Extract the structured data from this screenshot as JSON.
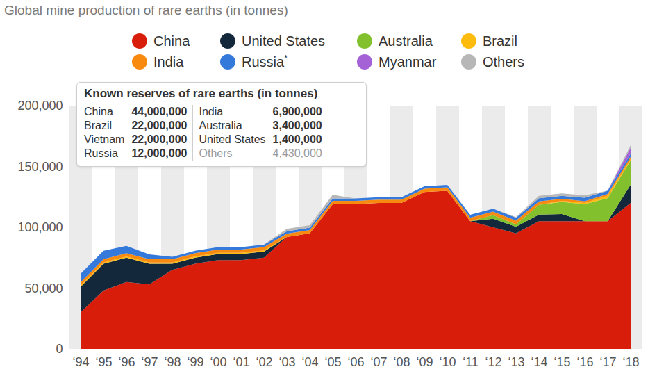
{
  "chart_data": {
    "type": "area",
    "title": "Global mine production of rare earths (in tonnes)",
    "stacked": true,
    "grid": false,
    "legend": "top",
    "categories": [
      "‘94",
      "‘95",
      "‘96",
      "‘97",
      "‘98",
      "‘99",
      "‘00",
      "‘01",
      "‘02",
      "‘03",
      "‘04",
      "‘05",
      "‘06",
      "‘07",
      "‘08",
      "‘09",
      "‘10",
      "‘11",
      "‘12",
      "‘13",
      "‘14",
      "‘15",
      "‘16",
      "‘17",
      "‘18"
    ],
    "series": [
      {
        "name": "China",
        "color": "#d81e0b",
        "values": [
          30000,
          48000,
          55000,
          53000,
          65000,
          70000,
          73000,
          73000,
          75000,
          92000,
          95000,
          119000,
          119000,
          120000,
          120000,
          129000,
          130000,
          105000,
          100000,
          95000,
          105000,
          105000,
          105000,
          105000,
          120000
        ]
      },
      {
        "name": "United States",
        "color": "#13283b",
        "values": [
          21000,
          22000,
          20000,
          17000,
          5000,
          5000,
          5000,
          5000,
          5000,
          0,
          0,
          0,
          0,
          0,
          0,
          0,
          0,
          0,
          7000,
          5500,
          5400,
          5900,
          0,
          0,
          15000
        ]
      },
      {
        "name": "Australia",
        "color": "#82c12d",
        "values": [
          0,
          0,
          0,
          0,
          0,
          0,
          0,
          0,
          0,
          0,
          0,
          0,
          0,
          0,
          0,
          0,
          0,
          0,
          3000,
          2000,
          8000,
          10000,
          14000,
          19000,
          20000
        ]
      },
      {
        "name": "Brazil",
        "color": "#fdbb0d",
        "values": [
          1000,
          1000,
          1000,
          1000,
          1000,
          1000,
          1000,
          1000,
          1000,
          0,
          0,
          0,
          0,
          0,
          0,
          0,
          0,
          0,
          0,
          0,
          0,
          800,
          1000,
          2000,
          1000
        ]
      },
      {
        "name": "India",
        "color": "#f98a10",
        "values": [
          2700,
          2700,
          2700,
          2700,
          2700,
          2700,
          2700,
          2700,
          2700,
          2700,
          2700,
          2700,
          2700,
          2700,
          2700,
          2700,
          2800,
          2800,
          2900,
          2900,
          2900,
          1700,
          1500,
          1500,
          1800
        ]
      },
      {
        "name": "Russia*",
        "color": "#3579db",
        "values": [
          7000,
          7000,
          6000,
          4000,
          2000,
          2000,
          2000,
          2000,
          2000,
          2000,
          2000,
          2000,
          2000,
          2000,
          2000,
          2000,
          2000,
          2500,
          2400,
          2500,
          2500,
          2500,
          2800,
          2600,
          2600
        ]
      },
      {
        "name": "Myanmar",
        "color": "#a562d6",
        "values": [
          0,
          0,
          0,
          0,
          0,
          0,
          0,
          0,
          0,
          0,
          0,
          0,
          0,
          0,
          0,
          0,
          0,
          0,
          0,
          0,
          0,
          0,
          0,
          0,
          5000
        ]
      },
      {
        "name": "Others",
        "color": "#b7b7b7",
        "values": [
          0,
          0,
          0,
          0,
          0,
          0,
          0,
          0,
          0,
          2000,
          2000,
          3000,
          0,
          0,
          0,
          0,
          0,
          0,
          0,
          500,
          2000,
          2000,
          2000,
          0,
          2000
        ]
      }
    ],
    "ylim": [
      0,
      200000
    ],
    "yticks": [
      0,
      {
        "value": 50000,
        "label": "50,000"
      },
      {
        "value": 100000,
        "label": "100,000"
      },
      {
        "value": 150000,
        "label": "150,000"
      },
      {
        "value": 200000,
        "label": "200,000"
      }
    ]
  },
  "inset_table": {
    "title": "Known reserves of rare earths (in tonnes)",
    "rows": [
      [
        "China",
        "44,000,000",
        "India",
        "6,900,000"
      ],
      [
        "Brazil",
        "22,000,000",
        "Australia",
        "3,400,000"
      ],
      [
        "Vietnam",
        "22,000,000",
        "United States",
        "1,400,000"
      ],
      [
        "Russia",
        "12,000,000",
        "Others",
        "4,430,000"
      ]
    ]
  }
}
